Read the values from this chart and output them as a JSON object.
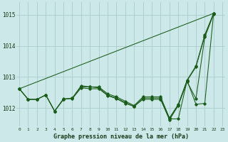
{
  "title": "Graphe pression niveau de la mer (hPa)",
  "background_color": "#cce8e8",
  "grid_color": "#aacccc",
  "line_color": "#1a5c1a",
  "x_labels": [
    "0",
    "1",
    "2",
    "3",
    "4",
    "5",
    "6",
    "7",
    "8",
    "9",
    "10",
    "11",
    "12",
    "13",
    "14",
    "15",
    "16",
    "17",
    "18",
    "19",
    "20",
    "21",
    "22",
    "23"
  ],
  "ylim": [
    1011.4,
    1015.4
  ],
  "yticks": [
    1012,
    1013,
    1014,
    1015
  ],
  "xlim": [
    -0.3,
    23.3
  ],
  "straight_line": {
    "x": [
      0,
      22
    ],
    "y": [
      1012.62,
      1015.05
    ]
  },
  "line_with_markers_1": {
    "x": [
      0,
      1,
      2,
      3,
      4,
      5,
      6,
      7,
      8,
      9,
      10,
      11,
      12,
      13,
      14,
      15,
      16,
      17,
      18,
      19,
      20,
      21,
      22
    ],
    "y": [
      1012.62,
      1012.28,
      1012.28,
      1012.42,
      1011.9,
      1012.28,
      1012.32,
      1012.68,
      1012.68,
      1012.68,
      1012.46,
      1012.36,
      1012.22,
      1012.08,
      1012.36,
      1012.36,
      1012.36,
      1011.68,
      1012.12,
      1012.9,
      1013.36,
      1014.36,
      1015.05
    ]
  },
  "line_with_markers_2": {
    "x": [
      0,
      1,
      2,
      3,
      4,
      5,
      6,
      7,
      8,
      9,
      10,
      11,
      12,
      13,
      14,
      15,
      16,
      17,
      18,
      19,
      20,
      21,
      22
    ],
    "y": [
      1012.62,
      1012.28,
      1012.28,
      1012.42,
      1011.9,
      1012.28,
      1012.32,
      1012.72,
      1012.68,
      1012.65,
      1012.42,
      1012.32,
      1012.18,
      1012.05,
      1012.32,
      1012.32,
      1012.32,
      1011.65,
      1012.1,
      1012.88,
      1013.32,
      1014.32,
      1015.05
    ]
  },
  "line_with_markers_3": {
    "x": [
      0,
      1,
      2,
      3,
      4,
      5,
      6,
      7,
      8,
      9,
      10,
      11,
      12,
      13,
      14,
      15,
      16,
      17,
      18,
      19,
      20,
      21,
      22
    ],
    "y": [
      1012.62,
      1012.28,
      1012.28,
      1012.42,
      1011.9,
      1012.3,
      1012.3,
      1012.65,
      1012.62,
      1012.62,
      1012.4,
      1012.3,
      1012.15,
      1012.05,
      1012.28,
      1012.28,
      1012.28,
      1011.62,
      1012.08,
      1012.85,
      1012.3,
      1014.28,
      1015.02
    ]
  },
  "line_zigzag": {
    "x": [
      16,
      17,
      18,
      19,
      20,
      21,
      22
    ],
    "y": [
      1012.28,
      1011.65,
      1011.65,
      1012.88,
      1012.12,
      1012.15,
      1015.05
    ]
  }
}
